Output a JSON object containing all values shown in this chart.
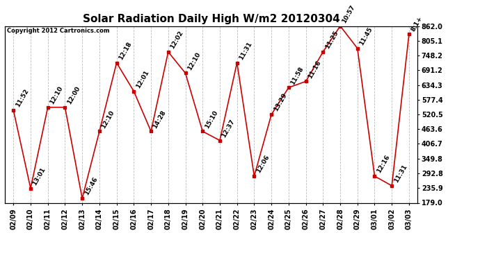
{
  "title": "Solar Radiation Daily High W/m2 20120304",
  "copyright": "Copyright 2012 Cartronics.com",
  "dates": [
    "02/09",
    "02/10",
    "02/11",
    "02/12",
    "02/13",
    "02/14",
    "02/15",
    "02/16",
    "02/17",
    "02/18",
    "02/19",
    "02/20",
    "02/21",
    "02/22",
    "02/23",
    "02/24",
    "02/25",
    "02/26",
    "02/27",
    "02/28",
    "02/29",
    "03/01",
    "03/02",
    "03/03"
  ],
  "values": [
    537,
    235,
    548,
    548,
    196,
    455,
    720,
    610,
    455,
    762,
    680,
    455,
    420,
    720,
    282,
    520,
    624,
    648,
    762,
    862,
    776,
    282,
    245,
    830
  ],
  "times": [
    "11:52",
    "13:01",
    "12:10",
    "12:00",
    "15:46",
    "12:10",
    "12:18",
    "12:01",
    "14:28",
    "12:02",
    "12:10",
    "15:10",
    "12:37",
    "11:31",
    "12:06",
    "13:29",
    "11:58",
    "11:16",
    "11:25",
    "10:57",
    "11:45",
    "12:16",
    "11:31",
    "8:1+"
  ],
  "line_color": "#cc0000",
  "marker_color": "#cc0000",
  "bg_color": "#ffffff",
  "grid_color": "#bbbbbb",
  "yticks": [
    179.0,
    235.9,
    292.8,
    349.8,
    406.7,
    463.6,
    520.5,
    577.4,
    634.3,
    691.2,
    748.2,
    805.1,
    862.0
  ],
  "ylim": [
    179.0,
    862.0
  ],
  "title_fontsize": 11,
  "tick_fontsize": 7,
  "annot_fontsize": 6.5
}
